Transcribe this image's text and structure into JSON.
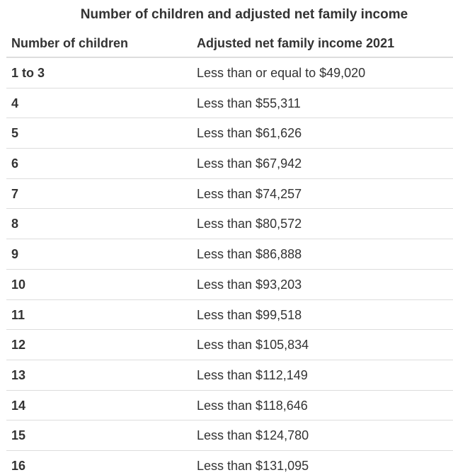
{
  "chart_data": {
    "type": "table",
    "title": "Number of children and adjusted net family income",
    "columns": [
      "Number of children",
      "Adjusted net family income 2021"
    ],
    "rows": [
      [
        "1 to 3",
        "Less than or equal to $49,020"
      ],
      [
        "4",
        "Less than $55,311"
      ],
      [
        "5",
        "Less than $61,626"
      ],
      [
        "6",
        "Less than $67,942"
      ],
      [
        "7",
        "Less than $74,257"
      ],
      [
        "8",
        "Less than $80,572"
      ],
      [
        "9",
        "Less than $86,888"
      ],
      [
        "10",
        "Less than $93,203"
      ],
      [
        "11",
        "Less than $99,518"
      ],
      [
        "12",
        "Less than $105,834"
      ],
      [
        "13",
        "Less than $112,149"
      ],
      [
        "14",
        "Less than $118,646"
      ],
      [
        "15",
        "Less than $124,780"
      ],
      [
        "16",
        "Less than $131,095"
      ]
    ],
    "layout": {
      "legend": "none",
      "grid": "horizontal-row-borders",
      "header_bold": true,
      "first_column_bold": true
    }
  },
  "colors": {
    "text": "#333333",
    "border": "#dddddd",
    "background": "#ffffff"
  }
}
